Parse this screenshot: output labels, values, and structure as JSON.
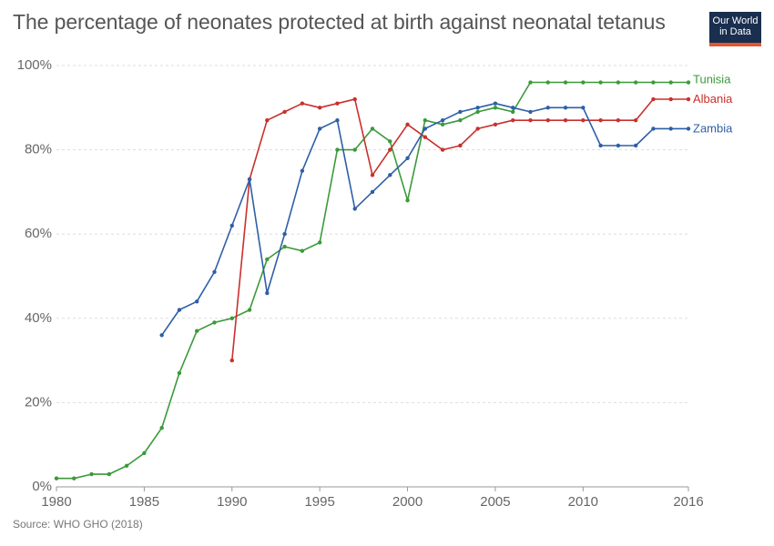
{
  "title": "The percentage of neonates protected at birth against neonatal tetanus",
  "logo": {
    "line1": "Our World",
    "line2": "in Data",
    "bg": "#1a2e4f",
    "accent": "#e3562d"
  },
  "source": "Source: WHO GHO (2018)",
  "chart_data": {
    "type": "line",
    "title": "The percentage of neonates protected at birth against neonatal tetanus",
    "xlabel": "",
    "ylabel": "",
    "xlim": [
      1980,
      2016
    ],
    "ylim": [
      0,
      100
    ],
    "x_ticks": [
      1980,
      1985,
      1990,
      1995,
      2000,
      2005,
      2010,
      2016
    ],
    "y_ticks": [
      0,
      20,
      40,
      60,
      80,
      100
    ],
    "y_tick_labels": [
      "0%",
      "20%",
      "40%",
      "60%",
      "80%",
      "100%"
    ],
    "grid": "horizontal dashed",
    "legend": "right end labels",
    "series": [
      {
        "name": "Tunisia",
        "color": "#3a9a3a",
        "x": [
          1980,
          1981,
          1982,
          1983,
          1984,
          1985,
          1986,
          1987,
          1988,
          1989,
          1990,
          1991,
          1992,
          1993,
          1994,
          1995,
          1996,
          1997,
          1998,
          1999,
          2000,
          2001,
          2002,
          2003,
          2004,
          2005,
          2006,
          2007,
          2008,
          2009,
          2010,
          2011,
          2012,
          2013,
          2014,
          2015,
          2016
        ],
        "y": [
          2,
          2,
          3,
          3,
          5,
          8,
          14,
          27,
          37,
          39,
          40,
          42,
          54,
          57,
          56,
          58,
          80,
          80,
          85,
          82,
          68,
          87,
          86,
          87,
          89,
          90,
          89,
          96,
          96,
          96,
          96,
          96,
          96,
          96,
          96,
          96,
          96
        ]
      },
      {
        "name": "Albania",
        "color": "#c9302c",
        "x": [
          1990,
          1991,
          1992,
          1993,
          1994,
          1995,
          1996,
          1997,
          1998,
          1999,
          2000,
          2001,
          2002,
          2003,
          2004,
          2005,
          2006,
          2007,
          2008,
          2009,
          2010,
          2011,
          2012,
          2013,
          2014,
          2015,
          2016
        ],
        "y": [
          30,
          73,
          87,
          89,
          91,
          90,
          91,
          92,
          74,
          80,
          86,
          83,
          80,
          81,
          85,
          86,
          87,
          87,
          87,
          87,
          87,
          87,
          87,
          87,
          92,
          92,
          92
        ]
      },
      {
        "name": "Zambia",
        "color": "#2e5fa6",
        "x": [
          1986,
          1987,
          1988,
          1989,
          1990,
          1991,
          1992,
          1993,
          1994,
          1995,
          1996,
          1997,
          1998,
          1999,
          2000,
          2001,
          2002,
          2003,
          2004,
          2005,
          2006,
          2007,
          2008,
          2009,
          2010,
          2011,
          2012,
          2013,
          2014,
          2015,
          2016
        ],
        "y": [
          36,
          42,
          44,
          51,
          62,
          73,
          46,
          60,
          75,
          85,
          87,
          66,
          70,
          74,
          78,
          85,
          87,
          89,
          90,
          91,
          90,
          89,
          90,
          90,
          90,
          81,
          81,
          81,
          85,
          85,
          85
        ]
      }
    ]
  }
}
